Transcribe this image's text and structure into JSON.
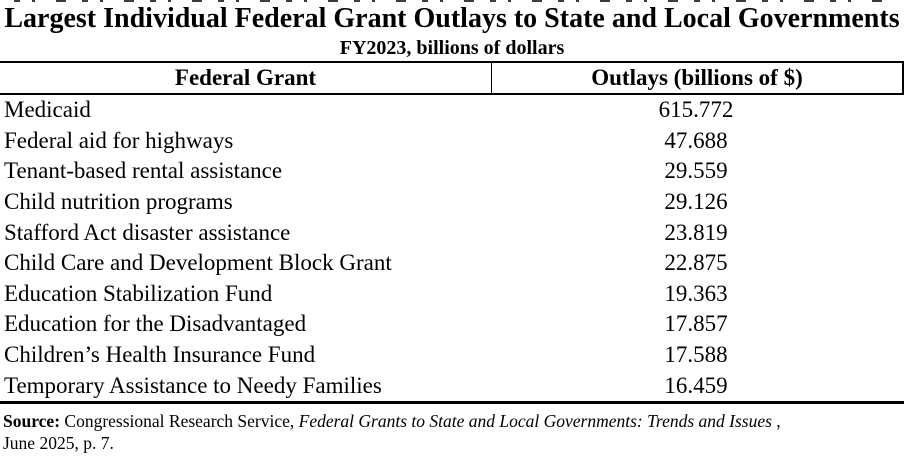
{
  "chart_data": {
    "type": "table",
    "title": "Largest Individual Federal Grant Outlays to State and Local Governments",
    "subtitle": "FY2023, billions of dollars",
    "columns": [
      "Federal Grant",
      "Outlays (billions of $)"
    ],
    "categories": [
      "Medicaid",
      "Federal aid for highways",
      "Tenant-based rental assistance",
      "Child nutrition programs",
      "Stafford Act disaster assistance",
      "Child Care and Development Block Grant",
      "Education Stabilization Fund",
      "Education for the Disadvantaged",
      "Children’s Health Insurance Fund",
      "Temporary Assistance to Needy Families"
    ],
    "values": [
      "615.772",
      "47.688",
      "29.559",
      "29.126",
      "23.819",
      "22.875",
      "19.363",
      "17.857",
      "17.588",
      "16.459"
    ],
    "legend_position": "none",
    "grid": "header-and-bottom-rules-only"
  },
  "source": {
    "label": "Source:",
    "before_italic": " Congressional Research Service, ",
    "italic": "Federal Grants to State and Local Governments: Trends and Issues",
    "after_italic": " ,",
    "line2": "June 2025, p. 7."
  },
  "colors": {
    "text": "#000000",
    "background": "#ffffff",
    "rule": "#000000"
  }
}
